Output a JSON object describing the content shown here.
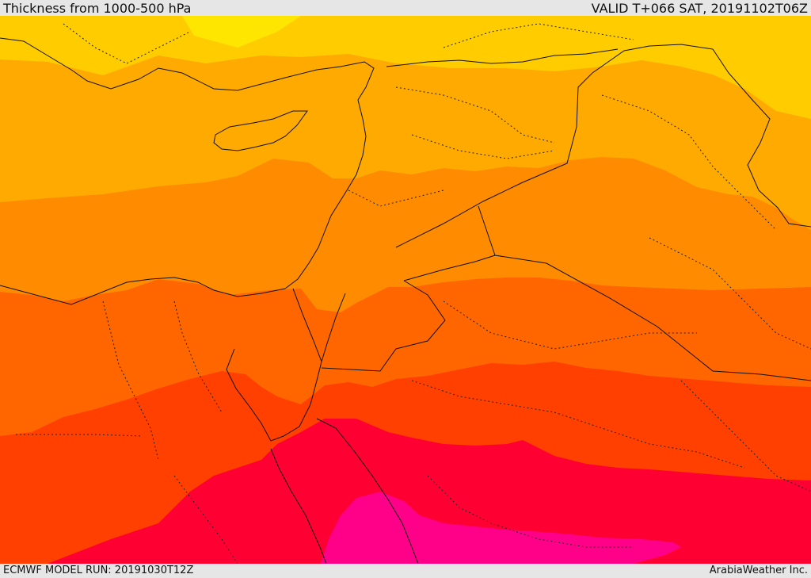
{
  "header": {
    "title": "Thickness from 1000-500 hPa",
    "valid": "VALID T+066 SAT, 20191102T06Z"
  },
  "footer": {
    "model_run": "ECMWF MODEL RUN: 20191030T12Z",
    "credit": "ArabiaWeather Inc."
  },
  "map": {
    "colors": {
      "band_1": "#ffe600",
      "band_2": "#ffcc00",
      "band_3": "#ffaa00",
      "band_4": "#ff8c00",
      "band_5": "#ff6600",
      "band_6": "#ff4000",
      "band_7": "#ff0033",
      "band_8": "#ff0088"
    }
  }
}
